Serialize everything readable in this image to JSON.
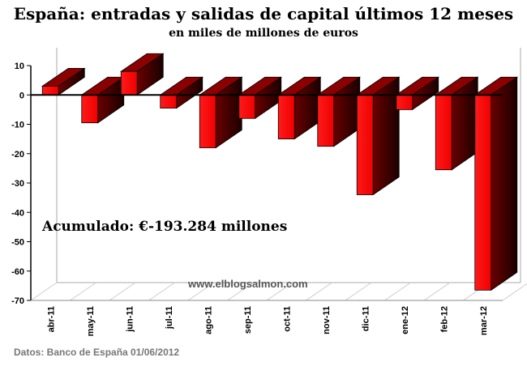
{
  "chart_data": {
    "type": "bar",
    "title": "España: entradas y salidas de capital últimos 12 meses",
    "subtitle": "en miles de millones de euros",
    "categories": [
      "abr-11",
      "may-11",
      "jun-11",
      "jul-11",
      "ago-11",
      "sep-11",
      "oct-11",
      "nov-11",
      "dic-11",
      "ene-12",
      "feb-12",
      "mar-12"
    ],
    "values": [
      3,
      -9.5,
      8,
      -4.5,
      -18,
      -8,
      -15,
      -17.5,
      -34,
      -5,
      -25.5,
      -66.5
    ],
    "ylim": [
      -70,
      10
    ],
    "yticks": [
      "10",
      "0",
      "-10",
      "-20",
      "-30",
      "-40",
      "-50",
      "-60",
      "-70"
    ],
    "annotation": "Acumulado: €-193.284 millones",
    "watermark": "www.elblogsalmon.com",
    "source": "Datos: Banco de España 01/06/2012",
    "colors": {
      "bar_front": "#ff0000",
      "bar_top": "#8b0000",
      "bar_side": "#300000"
    }
  }
}
